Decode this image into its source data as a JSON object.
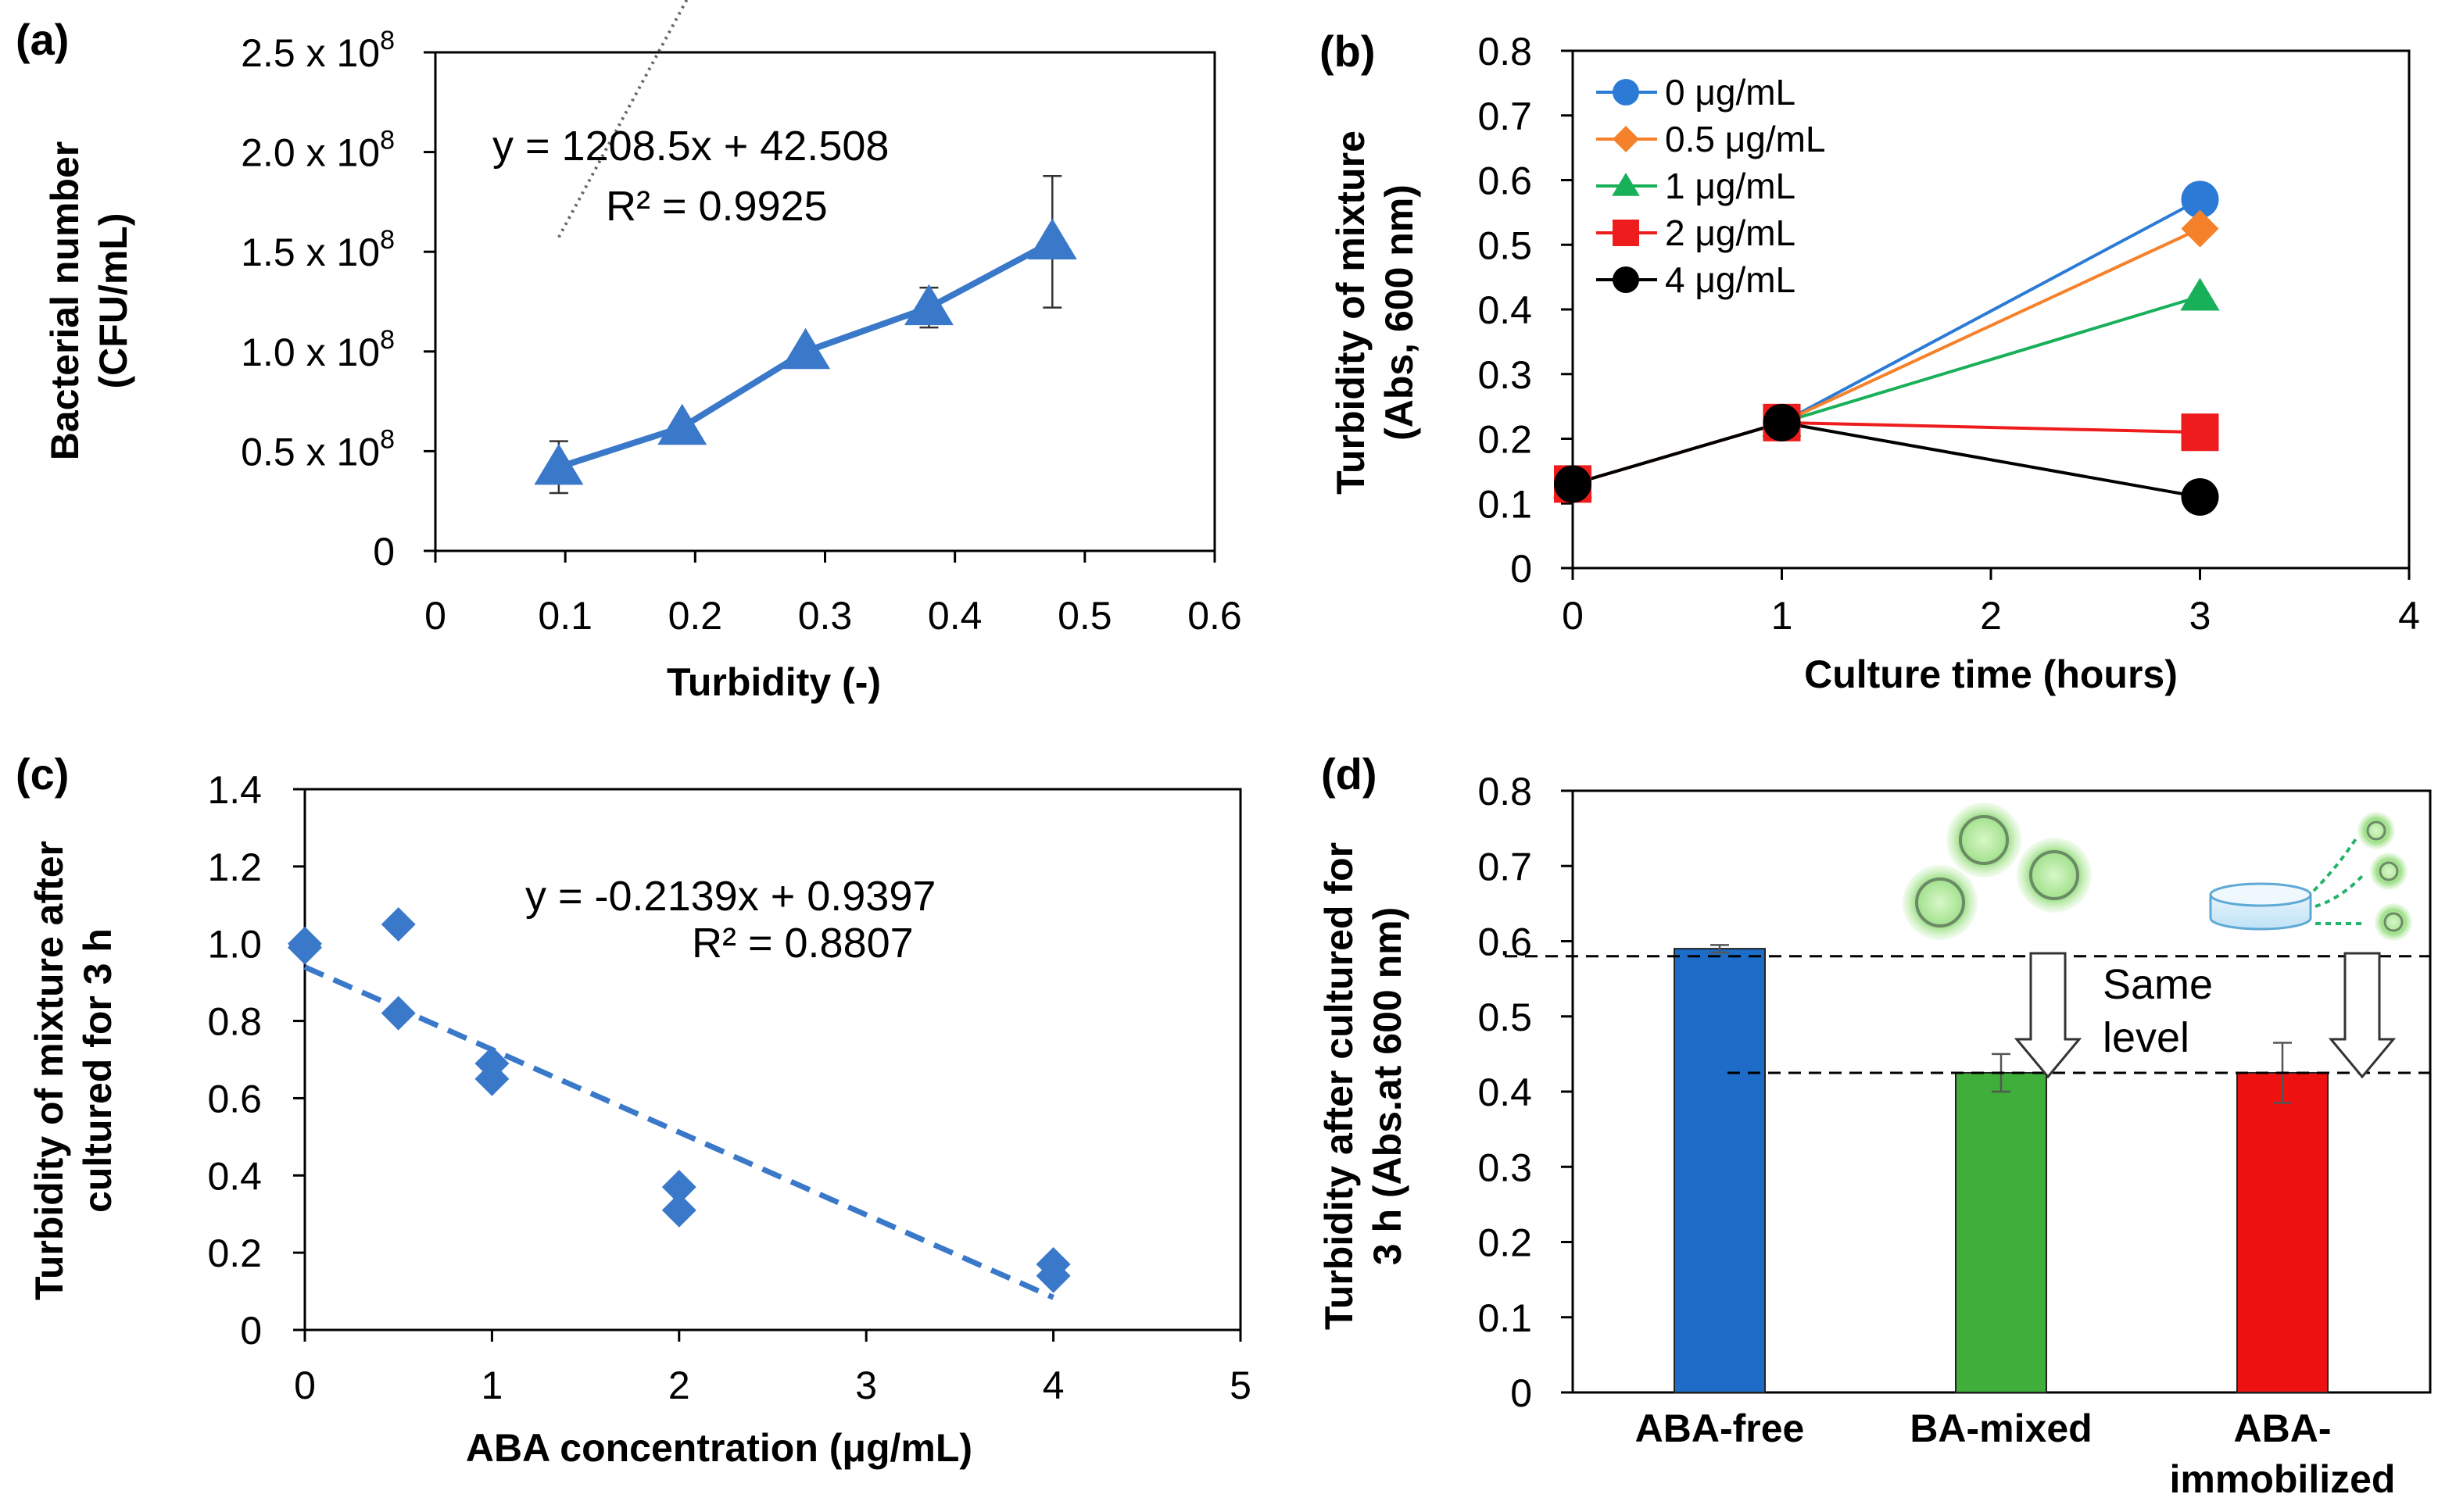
{
  "chart_data": [
    {
      "id": "a",
      "panel_label": "(a)",
      "type": "line",
      "xlabel": "Turbidity (-)",
      "ylabel_line1": "Bacterial number",
      "ylabel_line2": "(CFU/mL)",
      "xlim": [
        0,
        0.6
      ],
      "ylim": [
        0,
        250
      ],
      "xticks": [
        "0",
        "0.1",
        "0.2",
        "0.3",
        "0.4",
        "0.5",
        "0.6"
      ],
      "yticks": [
        {
          "value": 0,
          "mantissa": "0",
          "exp": ""
        },
        {
          "value": 50,
          "mantissa": "0.5 x 10",
          "exp": "8"
        },
        {
          "value": 100,
          "mantissa": "1.0 x 10",
          "exp": "8"
        },
        {
          "value": 150,
          "mantissa": "1.5 x 10",
          "exp": "8"
        },
        {
          "value": 200,
          "mantissa": "2.0 x 10",
          "exp": "8"
        },
        {
          "value": 250,
          "mantissa": "2.5 x 10",
          "exp": "8"
        }
      ],
      "y_unit_multiplier": "x 10^6 CFU/mL",
      "series": [
        {
          "x": [
            0.095,
            0.19,
            0.285,
            0.38,
            0.475
          ],
          "y": [
            42,
            62,
            100,
            122,
            155
          ],
          "error": [
            13,
            0,
            0,
            10,
            33
          ],
          "marker": "triangle",
          "color": "#3a78c9"
        }
      ],
      "trendline": {
        "slope": 1208.5,
        "intercept": 42.508,
        "x_range": [
          0.095,
          0.475
        ]
      },
      "equation": "y = 1208.5x + 42.508",
      "r2": "R² = 0.9925"
    },
    {
      "id": "b",
      "panel_label": "(b)",
      "type": "line",
      "xlabel": "Culture time (hours)",
      "ylabel_line1": "Turbidity of mixture",
      "ylabel_line2": "(Abs, 600 nm)",
      "xlim": [
        0,
        4
      ],
      "ylim": [
        0,
        0.8
      ],
      "xticks": [
        "0",
        "1",
        "2",
        "3",
        "4"
      ],
      "yticks": [
        "0",
        "0.1",
        "0.2",
        "0.3",
        "0.4",
        "0.5",
        "0.6",
        "0.7",
        "0.8"
      ],
      "x": [
        0,
        1,
        3
      ],
      "series": [
        {
          "name": "0 μg/mL",
          "values": [
            0.13,
            0.225,
            0.57
          ],
          "marker": "circle",
          "color": "#2b7bd6"
        },
        {
          "name": "0.5 μg/mL",
          "values": [
            0.13,
            0.225,
            0.525
          ],
          "marker": "diamond",
          "color": "#f5822a"
        },
        {
          "name": "1 μg/mL",
          "values": [
            0.13,
            0.225,
            0.42
          ],
          "marker": "triangle",
          "color": "#19b05a"
        },
        {
          "name": "2 μg/mL",
          "values": [
            0.13,
            0.225,
            0.21
          ],
          "marker": "square",
          "color": "#ee1c1c"
        },
        {
          "name": "4 μg/mL",
          "values": [
            0.13,
            0.225,
            0.11
          ],
          "marker": "circle",
          "color": "#000000"
        }
      ],
      "legend_position": "top-left"
    },
    {
      "id": "c",
      "panel_label": "(c)",
      "type": "scatter",
      "xlabel": "ABA concentration (μg/mL)",
      "ylabel_line1": "Turbidity of mixture after",
      "ylabel_line2": "cultured for 3 h",
      "xlim": [
        0,
        5
      ],
      "ylim": [
        0,
        1.4
      ],
      "xticks": [
        "0",
        "1",
        "2",
        "3",
        "4",
        "5"
      ],
      "yticks": [
        "0",
        "0.2",
        "0.4",
        "0.6",
        "0.8",
        "1.0",
        "1.2",
        "1.4"
      ],
      "series": [
        {
          "x": [
            0,
            0,
            0.5,
            0.5,
            1,
            1,
            2,
            2,
            4,
            4
          ],
          "y": [
            1.0,
            0.99,
            1.05,
            0.82,
            0.69,
            0.65,
            0.37,
            0.31,
            0.17,
            0.14
          ],
          "marker": "diamond",
          "color": "#3a78c9"
        }
      ],
      "trendline": {
        "slope": -0.2139,
        "intercept": 0.9397,
        "x_range": [
          0,
          4
        ]
      },
      "equation": "y = -0.2139x + 0.9397",
      "r2": "R² = 0.8807"
    },
    {
      "id": "d",
      "panel_label": "(d)",
      "type": "bar",
      "xlabel": "",
      "ylabel_line1": "Turbidity after cultured for",
      "ylabel_line2": "3 h (Abs.at 600 nm)",
      "ylim": [
        0,
        0.8
      ],
      "yticks": [
        "0",
        "0.1",
        "0.2",
        "0.3",
        "0.4",
        "0.5",
        "0.6",
        "0.7",
        "0.8"
      ],
      "categories": [
        {
          "line1": "ABA-free",
          "line2": ""
        },
        {
          "line1": "BA-mixed",
          "line2": ""
        },
        {
          "line1": "ABA-",
          "line2": "immobilized"
        }
      ],
      "values": [
        0.59,
        0.425,
        0.425
      ],
      "errors": [
        0.005,
        0.025,
        0.04
      ],
      "colors": [
        "#1c6cc8",
        "#3fae3a",
        "#ee1111"
      ],
      "reference_lines": [
        0.58,
        0.425
      ],
      "annotation_line1": "Same",
      "annotation_line2": "level"
    }
  ]
}
